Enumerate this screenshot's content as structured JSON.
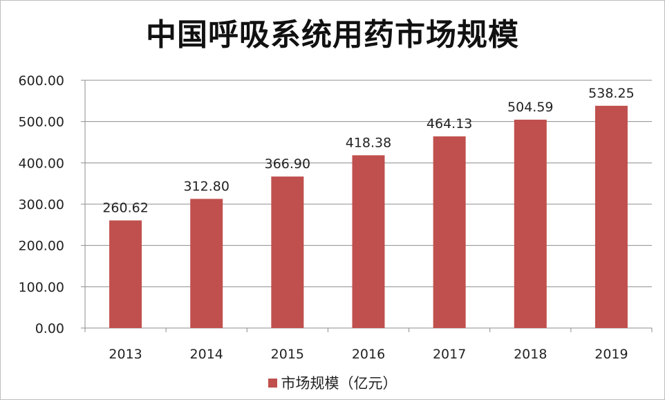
{
  "chart_data": {
    "type": "bar",
    "title": "中国呼吸系统用药市场规模",
    "categories": [
      "2013",
      "2014",
      "2015",
      "2016",
      "2017",
      "2018",
      "2019"
    ],
    "series": [
      {
        "name": "市场规模（亿元）",
        "values": [
          260.62,
          312.8,
          366.9,
          418.38,
          464.13,
          504.59,
          538.25
        ],
        "data_labels": [
          "260.62",
          "312.80",
          "366.90",
          "418.38",
          "464.13",
          "504.59",
          "538.25"
        ],
        "color": "#c0504d"
      }
    ],
    "ylim": [
      0,
      600
    ],
    "yticks": [
      "0.00",
      "100.00",
      "200.00",
      "300.00",
      "400.00",
      "500.00",
      "600.00"
    ],
    "ytick_values": [
      0,
      100,
      200,
      300,
      400,
      500,
      600
    ],
    "grid": true,
    "legend_position": "bottom"
  }
}
